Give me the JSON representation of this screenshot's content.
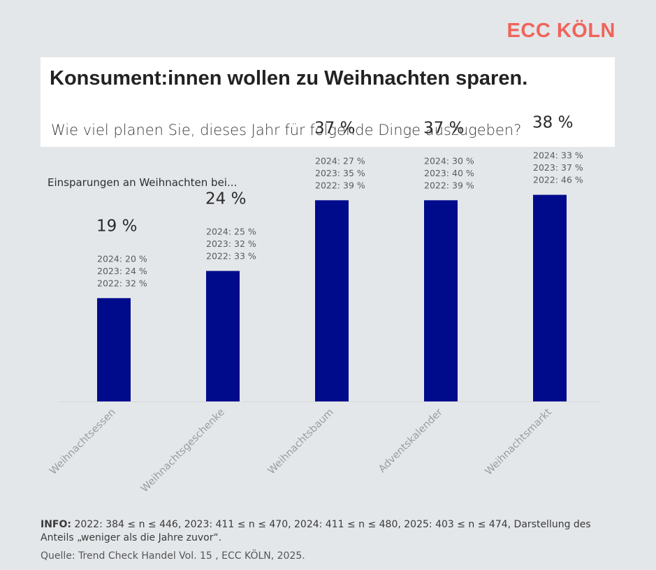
{
  "brand": {
    "logo_text": "ECC KÖLN",
    "color": "#f0645a"
  },
  "header": {
    "title": "Konsument:innen wollen zu Weihnachten sparen.",
    "subtitle": "Wie viel planen Sie, dieses Jahr für folgende Dinge auszugeben?"
  },
  "section_label": "Einsparungen an Weihnachten bei...",
  "chart_data": {
    "type": "bar",
    "categories": [
      "Weihnachtsessen",
      "Weihnachtsgeschenke",
      "Weihnachtsbaum",
      "Adventskalender",
      "Weihnachtsmarkt"
    ],
    "series": [
      {
        "values": [
          19,
          24,
          37,
          37,
          38
        ],
        "color": "#000b8c"
      }
    ],
    "value_labels": [
      "19 %",
      "24 %",
      "37 %",
      "37 %",
      "38 %"
    ],
    "previous_years": [
      [
        "2024: 20 %",
        "2023: 24 %",
        "2022: 32 %"
      ],
      [
        "2024: 25 %",
        "2023: 32 %",
        "2022: 33 %"
      ],
      [
        "2024: 27 %",
        "2023: 35 %",
        "2022: 39 %"
      ],
      [
        "2024: 30 %",
        "2023: 40 %",
        "2022: 39 %"
      ],
      [
        "2024: 33 %",
        "2023: 37 %",
        "2022: 46 %"
      ]
    ],
    "ylim": [
      0,
      40
    ],
    "grid": false,
    "legend": "none"
  },
  "footer": {
    "info_label": "INFO:",
    "info_text": " 2022: 384 ≤ n ≤ 446, 2023: 411 ≤ n ≤ 470, 2024: 411 ≤ n ≤ 480, 2025: 403 ≤ n ≤ 474, Darstellung des Anteils „weniger als die Jahre zuvor“.",
    "source": "Quelle: Trend Check Handel Vol. 15 , ECC KÖLN, 2025."
  }
}
